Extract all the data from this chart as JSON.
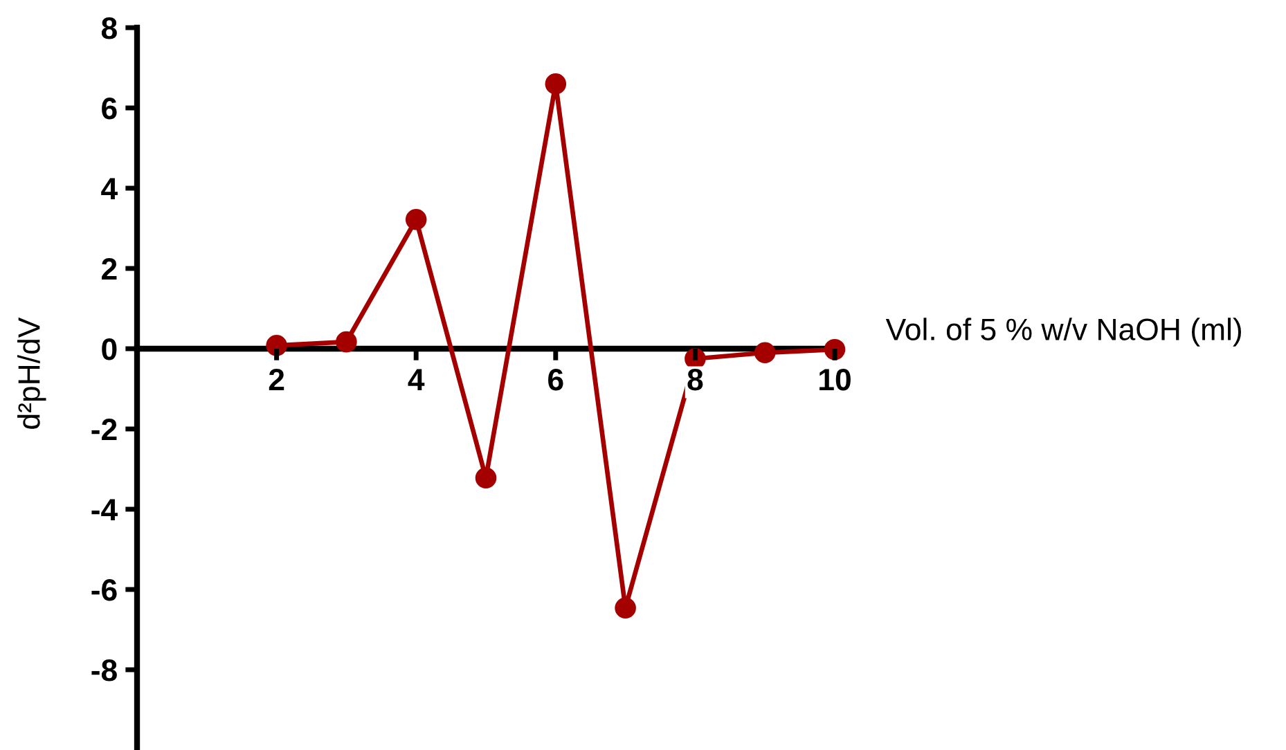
{
  "chart_data": {
    "type": "line",
    "xlabel": "Vol. of 5 % w/v NaOH (ml)",
    "ylabel": "d²pH/dV",
    "x": [
      2,
      3,
      4,
      5,
      6,
      7,
      8,
      9,
      10
    ],
    "series": [
      {
        "color": "#a50000",
        "values": [
          0.08,
          0.17,
          3.22,
          -3.22,
          6.6,
          -6.46,
          -0.25,
          -0.1,
          -0.02
        ]
      }
    ],
    "xlim": [
      0,
      10
    ],
    "ylim": [
      -10,
      8
    ],
    "xticks": [
      2,
      4,
      6,
      8,
      10
    ],
    "yticks": [
      -8,
      -6,
      -4,
      -2,
      0,
      2,
      4,
      6,
      8
    ],
    "marker": "circle",
    "line_style": "solid"
  }
}
